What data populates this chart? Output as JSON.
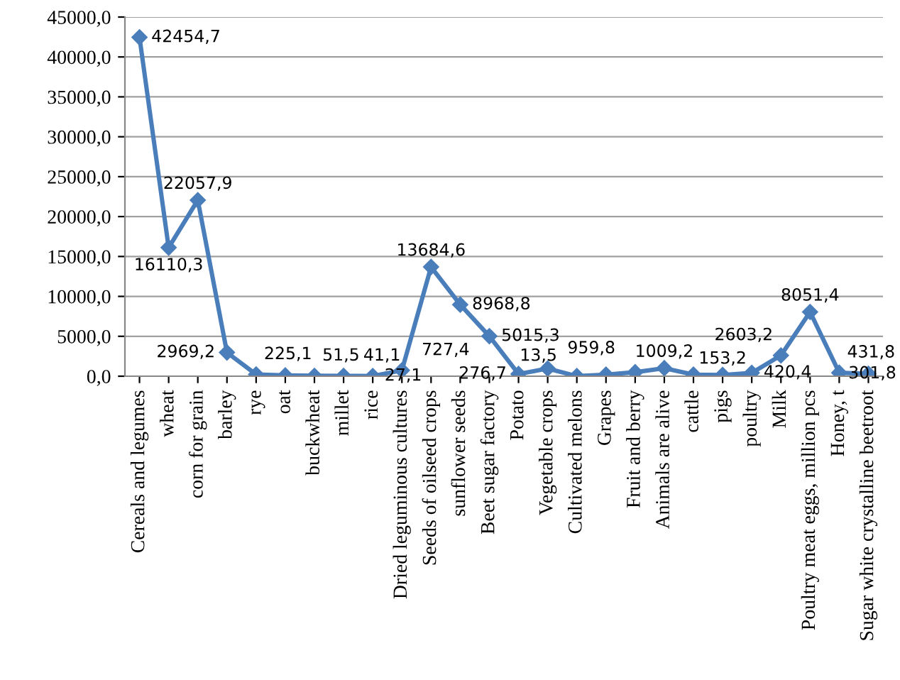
{
  "chart_data": {
    "type": "line",
    "categories": [
      "Cereals and legumes",
      "wheat",
      "corn for grain",
      "barley",
      "rye",
      "oat",
      "buckwheat",
      "millet",
      "rice",
      "Dried leguminous cultures",
      "Seeds of oilseed crops",
      "sunflower seeds",
      "Beet sugar factory",
      "Potato",
      "Vegetable crops",
      "Cultivated melons",
      "Grapes",
      "Fruit and berry",
      "Animals are alive",
      "cattle",
      "pigs",
      "poultry",
      "Milk",
      "Poultry meat eggs, million pcs",
      "Honey, t",
      "Sugar white crystalline beetroot"
    ],
    "series": [
      {
        "color": "#4a7ebb",
        "values": [
          42454.7,
          16110.3,
          22057.9,
          2969.2,
          225.1,
          100,
          51.5,
          41.1,
          27.1,
          727.4,
          13684.6,
          8968.8,
          5015.3,
          276.7,
          959.8,
          13.5,
          200,
          500,
          1009.2,
          200,
          153.2,
          420.4,
          2603.2,
          8051.4,
          431.8,
          301.8
        ],
        "value_labels": [
          "42454,7",
          "16110,3",
          "22057,9",
          "2969,2",
          "225,1",
          null,
          "51,5",
          "41,1",
          "27,1",
          "727,4",
          "13684,6",
          "8968,8",
          "5015,3",
          "276,7",
          "959,8",
          "13,5",
          null,
          null,
          "1009,2",
          null,
          "153,2",
          "420,4",
          "2603,2",
          "8051,4",
          "431,8",
          "301,8"
        ]
      }
    ],
    "ylim": [
      0,
      45000
    ],
    "yticks": [
      {
        "value": 0,
        "label": "0,0"
      },
      {
        "value": 5000,
        "label": "5000,0"
      },
      {
        "value": 10000,
        "label": "10000,0"
      },
      {
        "value": 15000,
        "label": "15000,0"
      },
      {
        "value": 20000,
        "label": "20000,0"
      },
      {
        "value": 25000,
        "label": "25000,0"
      },
      {
        "value": 30000,
        "label": "30000,0"
      },
      {
        "value": 35000,
        "label": "35000,0"
      },
      {
        "value": 40000,
        "label": "40000,0"
      },
      {
        "value": 45000,
        "label": "45000,0"
      }
    ],
    "grid": "y",
    "marker": "diamond",
    "line_style": "solid"
  }
}
